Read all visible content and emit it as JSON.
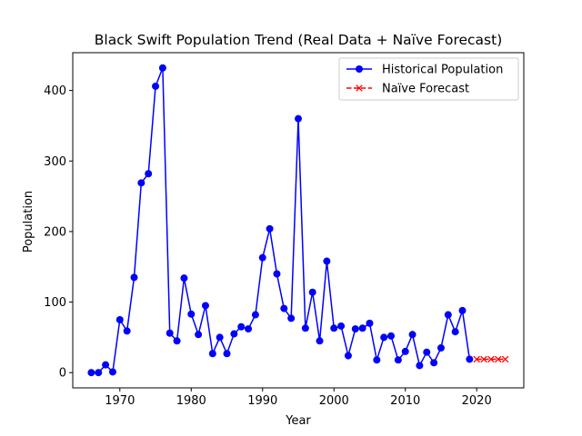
{
  "chart_data": {
    "type": "line",
    "title": "Black Swift Population Trend (Real Data + Naïve Forecast)",
    "xlabel": "Year",
    "ylabel": "Population",
    "xlim": [
      1963.4,
      2026.6
    ],
    "ylim": [
      -21.6,
      453.6
    ],
    "xticks": [
      1970,
      1980,
      1990,
      2000,
      2010,
      2020
    ],
    "yticks": [
      0,
      100,
      200,
      300,
      400
    ],
    "grid": false,
    "legend_position": "top-right",
    "series": [
      {
        "name": "Historical Population",
        "color": "#0000ff",
        "line_style": "solid",
        "marker": "circle",
        "x": [
          1966,
          1967,
          1968,
          1969,
          1970,
          1971,
          1972,
          1973,
          1974,
          1975,
          1976,
          1977,
          1978,
          1979,
          1980,
          1981,
          1982,
          1983,
          1984,
          1985,
          1986,
          1987,
          1988,
          1989,
          1990,
          1991,
          1992,
          1993,
          1994,
          1995,
          1996,
          1997,
          1998,
          1999,
          2000,
          2001,
          2002,
          2003,
          2004,
          2005,
          2006,
          2007,
          2008,
          2009,
          2010,
          2011,
          2012,
          2013,
          2014,
          2015,
          2016,
          2017,
          2018,
          2019
        ],
        "values": [
          0,
          0,
          11,
          1,
          75,
          59,
          135,
          269,
          282,
          406,
          432,
          56,
          45,
          134,
          83,
          54,
          95,
          27,
          50,
          27,
          55,
          65,
          62,
          82,
          163,
          204,
          140,
          91,
          77,
          360,
          63,
          114,
          45,
          158,
          63,
          66,
          24,
          62,
          63,
          70,
          18,
          50,
          52,
          18,
          30,
          54,
          10,
          29,
          14,
          35,
          82,
          58,
          88,
          19
        ]
      },
      {
        "name": "Naïve Forecast",
        "color": "#ff0000",
        "line_style": "dashed",
        "marker": "x",
        "x": [
          2020,
          2021,
          2022,
          2023,
          2024
        ],
        "values": [
          19,
          19,
          19,
          19,
          19
        ]
      }
    ]
  }
}
